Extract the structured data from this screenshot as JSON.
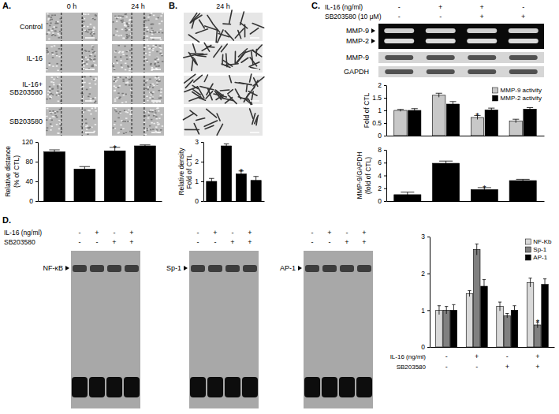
{
  "chart_data": [
    {
      "type": "bar",
      "annotations": {
        "panel": "A.",
        "columns": [
          "0 h",
          "24 h"
        ],
        "rows": [
          "Control",
          "IL-16",
          [
            "IL-16+",
            "SB203580"
          ],
          "SB203580"
        ]
      },
      "ylabel": [
        "Relative distance",
        "(% of CTL)"
      ],
      "categories": [
        null,
        null,
        null,
        null
      ],
      "values": [
        100,
        65,
        102,
        112
      ],
      "errors": [
        4,
        5,
        7,
        2
      ],
      "significance": [
        null,
        null,
        "*",
        null
      ],
      "color": "#000000",
      "ylim": [
        0,
        120
      ],
      "yticks": [
        0,
        40,
        80,
        120
      ]
    },
    {
      "type": "bar",
      "annotations": {
        "panel": "B.",
        "columns": [
          "24 h"
        ]
      },
      "ylabel": [
        "Relative density",
        "Fold of CTL"
      ],
      "categories": [
        null,
        null,
        null,
        null
      ],
      "values": [
        1,
        2.8,
        1.38,
        1.05
      ],
      "errors": [
        0.15,
        0.1,
        0.15,
        0.2
      ],
      "significance": [
        null,
        null,
        "*",
        null
      ],
      "color": "#000000",
      "ylim": [
        0,
        3
      ],
      "yticks": [
        0,
        1,
        2,
        3
      ]
    },
    {
      "type": "bar",
      "annotations": {
        "panel": "C.",
        "treatments": [
          {
            "label": "IL-16 (ng/ml)",
            "signs": [
              "-",
              "+",
              "+",
              "-"
            ]
          },
          {
            "label": "SB203580 (10 μM)",
            "signs": [
              "-",
              "-",
              "+",
              "+"
            ]
          }
        ],
        "gel_labels": [
          "MMP-9",
          "MMP-2"
        ],
        "blot_labels": [
          "MMP-9",
          "GAPDH"
        ]
      },
      "ylabel": "Fold of CTL",
      "categories": [
        null,
        null,
        null,
        null
      ],
      "series": [
        {
          "name": "MMP-9 activity",
          "color": "#c8c8c8",
          "values": [
            1,
            1.6,
            0.72,
            0.58
          ],
          "errors": [
            0.04,
            0.08,
            0.08,
            0.07
          ],
          "significance": [
            null,
            null,
            "*",
            null
          ]
        },
        {
          "name": "MMP-2 activity",
          "color": "#000000",
          "values": [
            1,
            1.25,
            1.02,
            1.05
          ],
          "errors": [
            0.07,
            0.1,
            0.07,
            0.06
          ]
        }
      ],
      "ylim": [
        0,
        2
      ],
      "yticks": [
        0,
        0.5,
        1,
        1.5,
        2
      ],
      "legend": "upper right"
    },
    {
      "type": "bar",
      "ylabel": [
        "MMP-9/GAPDH",
        "(fold of CTL)"
      ],
      "categories": [
        null,
        null,
        null,
        null
      ],
      "values": [
        1,
        5.9,
        1.8,
        3.2
      ],
      "errors": [
        0.4,
        0.35,
        0.3,
        0.2
      ],
      "significance": [
        null,
        null,
        "*",
        null
      ],
      "color": "#000000",
      "ylim": [
        0,
        8
      ],
      "yticks": [
        0,
        2,
        4,
        6,
        8
      ]
    },
    {
      "type": "bar",
      "annotations": {
        "panel": "D.",
        "treatments": [
          {
            "label": "IL-16 (ng/ml)",
            "signs": [
              "-",
              "+",
              "-",
              "+"
            ]
          },
          {
            "label": "SB203580",
            "signs": [
              "-",
              "-",
              "+",
              "+"
            ]
          }
        ],
        "gel_labels": [
          "NF-κB",
          "Sp-1",
          "AP-1"
        ]
      },
      "categories": [
        null,
        null,
        null,
        null
      ],
      "series": [
        {
          "name": "NF-Kb",
          "color": "#d9d9d9",
          "values": [
            1,
            1.45,
            1.1,
            1.75
          ],
          "errors": [
            0.12,
            0.08,
            0.12,
            0.12
          ]
        },
        {
          "name": "Sp-1",
          "color": "#808080",
          "values": [
            1,
            2.65,
            0.85,
            0.6
          ],
          "errors": [
            0.1,
            0.15,
            0.06,
            0.08
          ],
          "significance": [
            null,
            null,
            null,
            "*"
          ]
        },
        {
          "name": "AP-1",
          "color": "#000000",
          "values": [
            1,
            1.65,
            1,
            1.7
          ],
          "errors": [
            0.15,
            0.18,
            0.12,
            0.15
          ]
        }
      ],
      "ylim": [
        0,
        3
      ],
      "yticks": [
        0,
        1,
        2,
        3
      ],
      "legend": "upper right"
    }
  ]
}
